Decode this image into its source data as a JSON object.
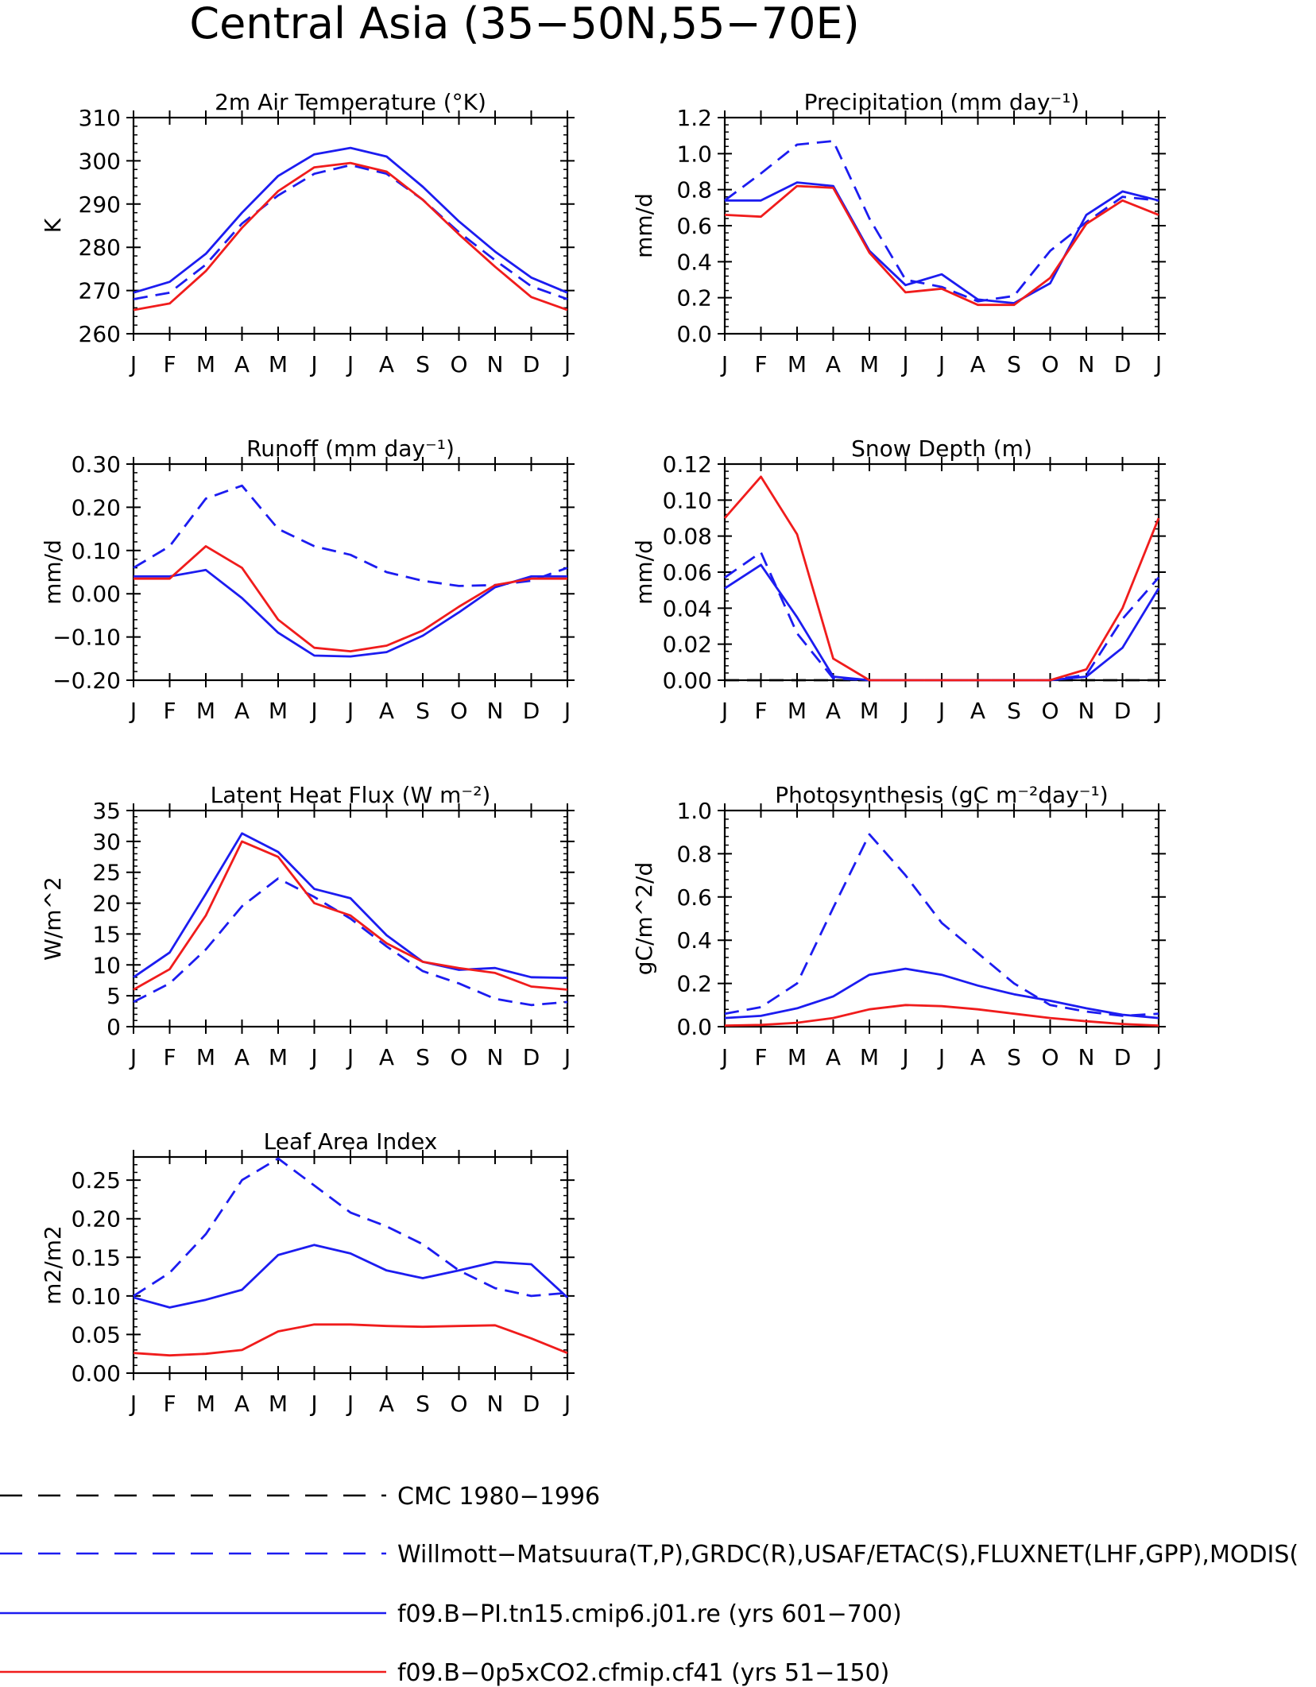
{
  "figure": {
    "title": "Central Asia (35−50N,55−70E)",
    "months": [
      "J",
      "F",
      "M",
      "A",
      "M",
      "J",
      "J",
      "A",
      "S",
      "O",
      "N",
      "D",
      "J"
    ]
  },
  "colors": {
    "obs": "#1c1cf0",
    "model_pi": "#1c1cf0",
    "model_05x": "#f01c1c",
    "cmc": "#000000"
  },
  "legend": [
    {
      "label": "CMC 1980−1996",
      "color": "#000000",
      "dash": true
    },
    {
      "label": "Willmott−Matsuura(T,P),GRDC(R),USAF/ETAC(S),FLUXNET(LHF,GPP),MODIS(",
      "color": "#1c1cf0",
      "dash": true
    },
    {
      "label": "f09.B−PI.tn15.cmip6.j01.re (yrs 601−700)",
      "color": "#1c1cf0",
      "dash": false
    },
    {
      "label": "f09.B−0p5xCO2.cfmip.cf41 (yrs 51−150)",
      "color": "#f01c1c",
      "dash": false
    }
  ],
  "chart_data": [
    {
      "type": "line",
      "title": "2m Air Temperature (°K)",
      "ylabel": "K",
      "ylim": [
        260,
        310
      ],
      "yticks": [
        "260",
        "270",
        "280",
        "290",
        "300",
        "310"
      ],
      "x": [
        "J",
        "F",
        "M",
        "A",
        "M",
        "J",
        "J",
        "A",
        "S",
        "O",
        "N",
        "D",
        "J"
      ],
      "series": [
        {
          "values": [
            268,
            269.5,
            276,
            285.5,
            292,
            297,
            299,
            297,
            291,
            283.5,
            277,
            271,
            268
          ],
          "color": "#1c1cf0",
          "dash": true
        },
        {
          "values": [
            269.5,
            272,
            278.5,
            288,
            296.5,
            301.5,
            303,
            301,
            294,
            286,
            279,
            273,
            269.5
          ],
          "color": "#1c1cf0",
          "dash": false
        },
        {
          "values": [
            265.5,
            267,
            274.5,
            284.5,
            293,
            298.5,
            299.5,
            297.5,
            291,
            283,
            275.5,
            268.5,
            265.5
          ],
          "color": "#f01c1c",
          "dash": false
        }
      ]
    },
    {
      "type": "line",
      "title": "Precipitation (mm day⁻¹)",
      "ylabel": "mm/d",
      "ylim": [
        0,
        1.2
      ],
      "yticks": [
        "0.0",
        "0.2",
        "0.4",
        "0.6",
        "0.8",
        "1.0",
        "1.2"
      ],
      "x": [
        "J",
        "F",
        "M",
        "A",
        "M",
        "J",
        "J",
        "A",
        "S",
        "O",
        "N",
        "D",
        "J"
      ],
      "series": [
        {
          "values": [
            0.74,
            0.89,
            1.05,
            1.07,
            0.64,
            0.3,
            0.26,
            0.18,
            0.21,
            0.46,
            0.62,
            0.76,
            0.74
          ],
          "color": "#1c1cf0",
          "dash": true
        },
        {
          "values": [
            0.74,
            0.74,
            0.84,
            0.82,
            0.46,
            0.27,
            0.33,
            0.19,
            0.17,
            0.28,
            0.66,
            0.79,
            0.74
          ],
          "color": "#1c1cf0",
          "dash": false
        },
        {
          "values": [
            0.66,
            0.65,
            0.82,
            0.81,
            0.45,
            0.23,
            0.25,
            0.16,
            0.16,
            0.31,
            0.61,
            0.74,
            0.66
          ],
          "color": "#f01c1c",
          "dash": false
        }
      ]
    },
    {
      "type": "line",
      "title": "Runoff (mm day⁻¹)",
      "ylabel": "mm/d",
      "ylim": [
        -0.2,
        0.3
      ],
      "yticks": [
        "−0.20",
        "−0.10",
        "0.00",
        "0.10",
        "0.20",
        "0.30"
      ],
      "x": [
        "J",
        "F",
        "M",
        "A",
        "M",
        "J",
        "J",
        "A",
        "S",
        "O",
        "N",
        "D",
        "J"
      ],
      "series": [
        {
          "values": [
            0.06,
            0.11,
            0.22,
            0.25,
            0.15,
            0.11,
            0.09,
            0.05,
            0.03,
            0.018,
            0.02,
            0.03,
            0.06
          ],
          "color": "#1c1cf0",
          "dash": true
        },
        {
          "values": [
            0.04,
            0.04,
            0.055,
            -0.01,
            -0.09,
            -0.143,
            -0.145,
            -0.135,
            -0.097,
            -0.043,
            0.015,
            0.04,
            0.04
          ],
          "color": "#1c1cf0",
          "dash": false
        },
        {
          "values": [
            0.035,
            0.035,
            0.11,
            0.06,
            -0.06,
            -0.125,
            -0.133,
            -0.12,
            -0.085,
            -0.03,
            0.02,
            0.035,
            0.035
          ],
          "color": "#f01c1c",
          "dash": false
        }
      ]
    },
    {
      "type": "line",
      "title": "Snow Depth (m)",
      "ylabel": "mm/d",
      "ylim": [
        0,
        0.12
      ],
      "yticks": [
        "0.00",
        "0.02",
        "0.04",
        "0.06",
        "0.08",
        "0.10",
        "0.12"
      ],
      "x": [
        "J",
        "F",
        "M",
        "A",
        "M",
        "J",
        "J",
        "A",
        "S",
        "O",
        "N",
        "D",
        "J"
      ],
      "series": [
        {
          "values": [
            0,
            0,
            0,
            0,
            0,
            0,
            0,
            0,
            0,
            0,
            0,
            0,
            0
          ],
          "color": "#000000",
          "dash": true
        },
        {
          "values": [
            0.057,
            0.071,
            0.026,
            0.001,
            0,
            0,
            0,
            0,
            0,
            0,
            0.003,
            0.034,
            0.057
          ],
          "color": "#1c1cf0",
          "dash": true
        },
        {
          "values": [
            0.051,
            0.064,
            0.035,
            0.002,
            0,
            0,
            0,
            0,
            0,
            0,
            0.002,
            0.018,
            0.051
          ],
          "color": "#1c1cf0",
          "dash": false
        },
        {
          "values": [
            0.09,
            0.113,
            0.081,
            0.012,
            0,
            0,
            0,
            0,
            0,
            0,
            0.006,
            0.04,
            0.09
          ],
          "color": "#f01c1c",
          "dash": false
        }
      ]
    },
    {
      "type": "line",
      "title": "Latent Heat Flux (W m⁻²)",
      "ylabel": "W/m^2",
      "ylim": [
        0,
        35
      ],
      "yticks": [
        "0",
        "5",
        "10",
        "15",
        "20",
        "25",
        "30",
        "35"
      ],
      "x": [
        "J",
        "F",
        "M",
        "A",
        "M",
        "J",
        "J",
        "A",
        "S",
        "O",
        "N",
        "D",
        "J"
      ],
      "series": [
        {
          "values": [
            4,
            7,
            12.5,
            19.5,
            24,
            21,
            17.5,
            13,
            9,
            7,
            4.5,
            3.5,
            4
          ],
          "color": "#1c1cf0",
          "dash": true
        },
        {
          "values": [
            8,
            12,
            21.5,
            31.3,
            28.3,
            22.3,
            20.8,
            14.8,
            10.5,
            9.2,
            9.5,
            8,
            7.9
          ],
          "color": "#1c1cf0",
          "dash": false
        },
        {
          "values": [
            6,
            9.3,
            18,
            30,
            27.5,
            20,
            18,
            13.5,
            10.5,
            9.5,
            8.7,
            6.5,
            6
          ],
          "color": "#f01c1c",
          "dash": false
        }
      ]
    },
    {
      "type": "line",
      "title": "Photosynthesis (gC m⁻²day⁻¹)",
      "ylabel": "gC/m^2/d",
      "ylim": [
        0,
        1.0
      ],
      "yticks": [
        "0.0",
        "0.2",
        "0.4",
        "0.6",
        "0.8",
        "1.0"
      ],
      "x": [
        "J",
        "F",
        "M",
        "A",
        "M",
        "J",
        "J",
        "A",
        "S",
        "O",
        "N",
        "D",
        "J"
      ],
      "series": [
        {
          "values": [
            0.06,
            0.09,
            0.2,
            0.55,
            0.89,
            0.7,
            0.48,
            0.34,
            0.2,
            0.1,
            0.07,
            0.05,
            0.06
          ],
          "color": "#1c1cf0",
          "dash": true
        },
        {
          "values": [
            0.04,
            0.05,
            0.085,
            0.14,
            0.24,
            0.268,
            0.24,
            0.19,
            0.15,
            0.12,
            0.085,
            0.055,
            0.04
          ],
          "color": "#1c1cf0",
          "dash": false
        },
        {
          "values": [
            0.005,
            0.008,
            0.018,
            0.04,
            0.08,
            0.1,
            0.095,
            0.08,
            0.06,
            0.04,
            0.025,
            0.012,
            0.005
          ],
          "color": "#f01c1c",
          "dash": false
        }
      ]
    },
    {
      "type": "line",
      "title": "Leaf Area Index",
      "ylabel": "m2/m2",
      "ylim": [
        0,
        0.28
      ],
      "yticks": [
        "0.00",
        "0.05",
        "0.10",
        "0.15",
        "0.20",
        "0.25"
      ],
      "x": [
        "J",
        "F",
        "M",
        "A",
        "M",
        "J",
        "J",
        "A",
        "S",
        "O",
        "N",
        "D",
        "J"
      ],
      "series": [
        {
          "values": [
            0.1,
            0.13,
            0.18,
            0.25,
            0.278,
            0.243,
            0.208,
            0.19,
            0.167,
            0.133,
            0.11,
            0.1,
            0.104
          ],
          "color": "#1c1cf0",
          "dash": true
        },
        {
          "values": [
            0.098,
            0.085,
            0.095,
            0.108,
            0.153,
            0.166,
            0.155,
            0.133,
            0.123,
            0.133,
            0.144,
            0.141,
            0.098
          ],
          "color": "#1c1cf0",
          "dash": false
        },
        {
          "values": [
            0.026,
            0.023,
            0.025,
            0.03,
            0.054,
            0.063,
            0.063,
            0.061,
            0.06,
            0.061,
            0.062,
            0.045,
            0.026
          ],
          "color": "#f01c1c",
          "dash": false
        }
      ]
    }
  ]
}
